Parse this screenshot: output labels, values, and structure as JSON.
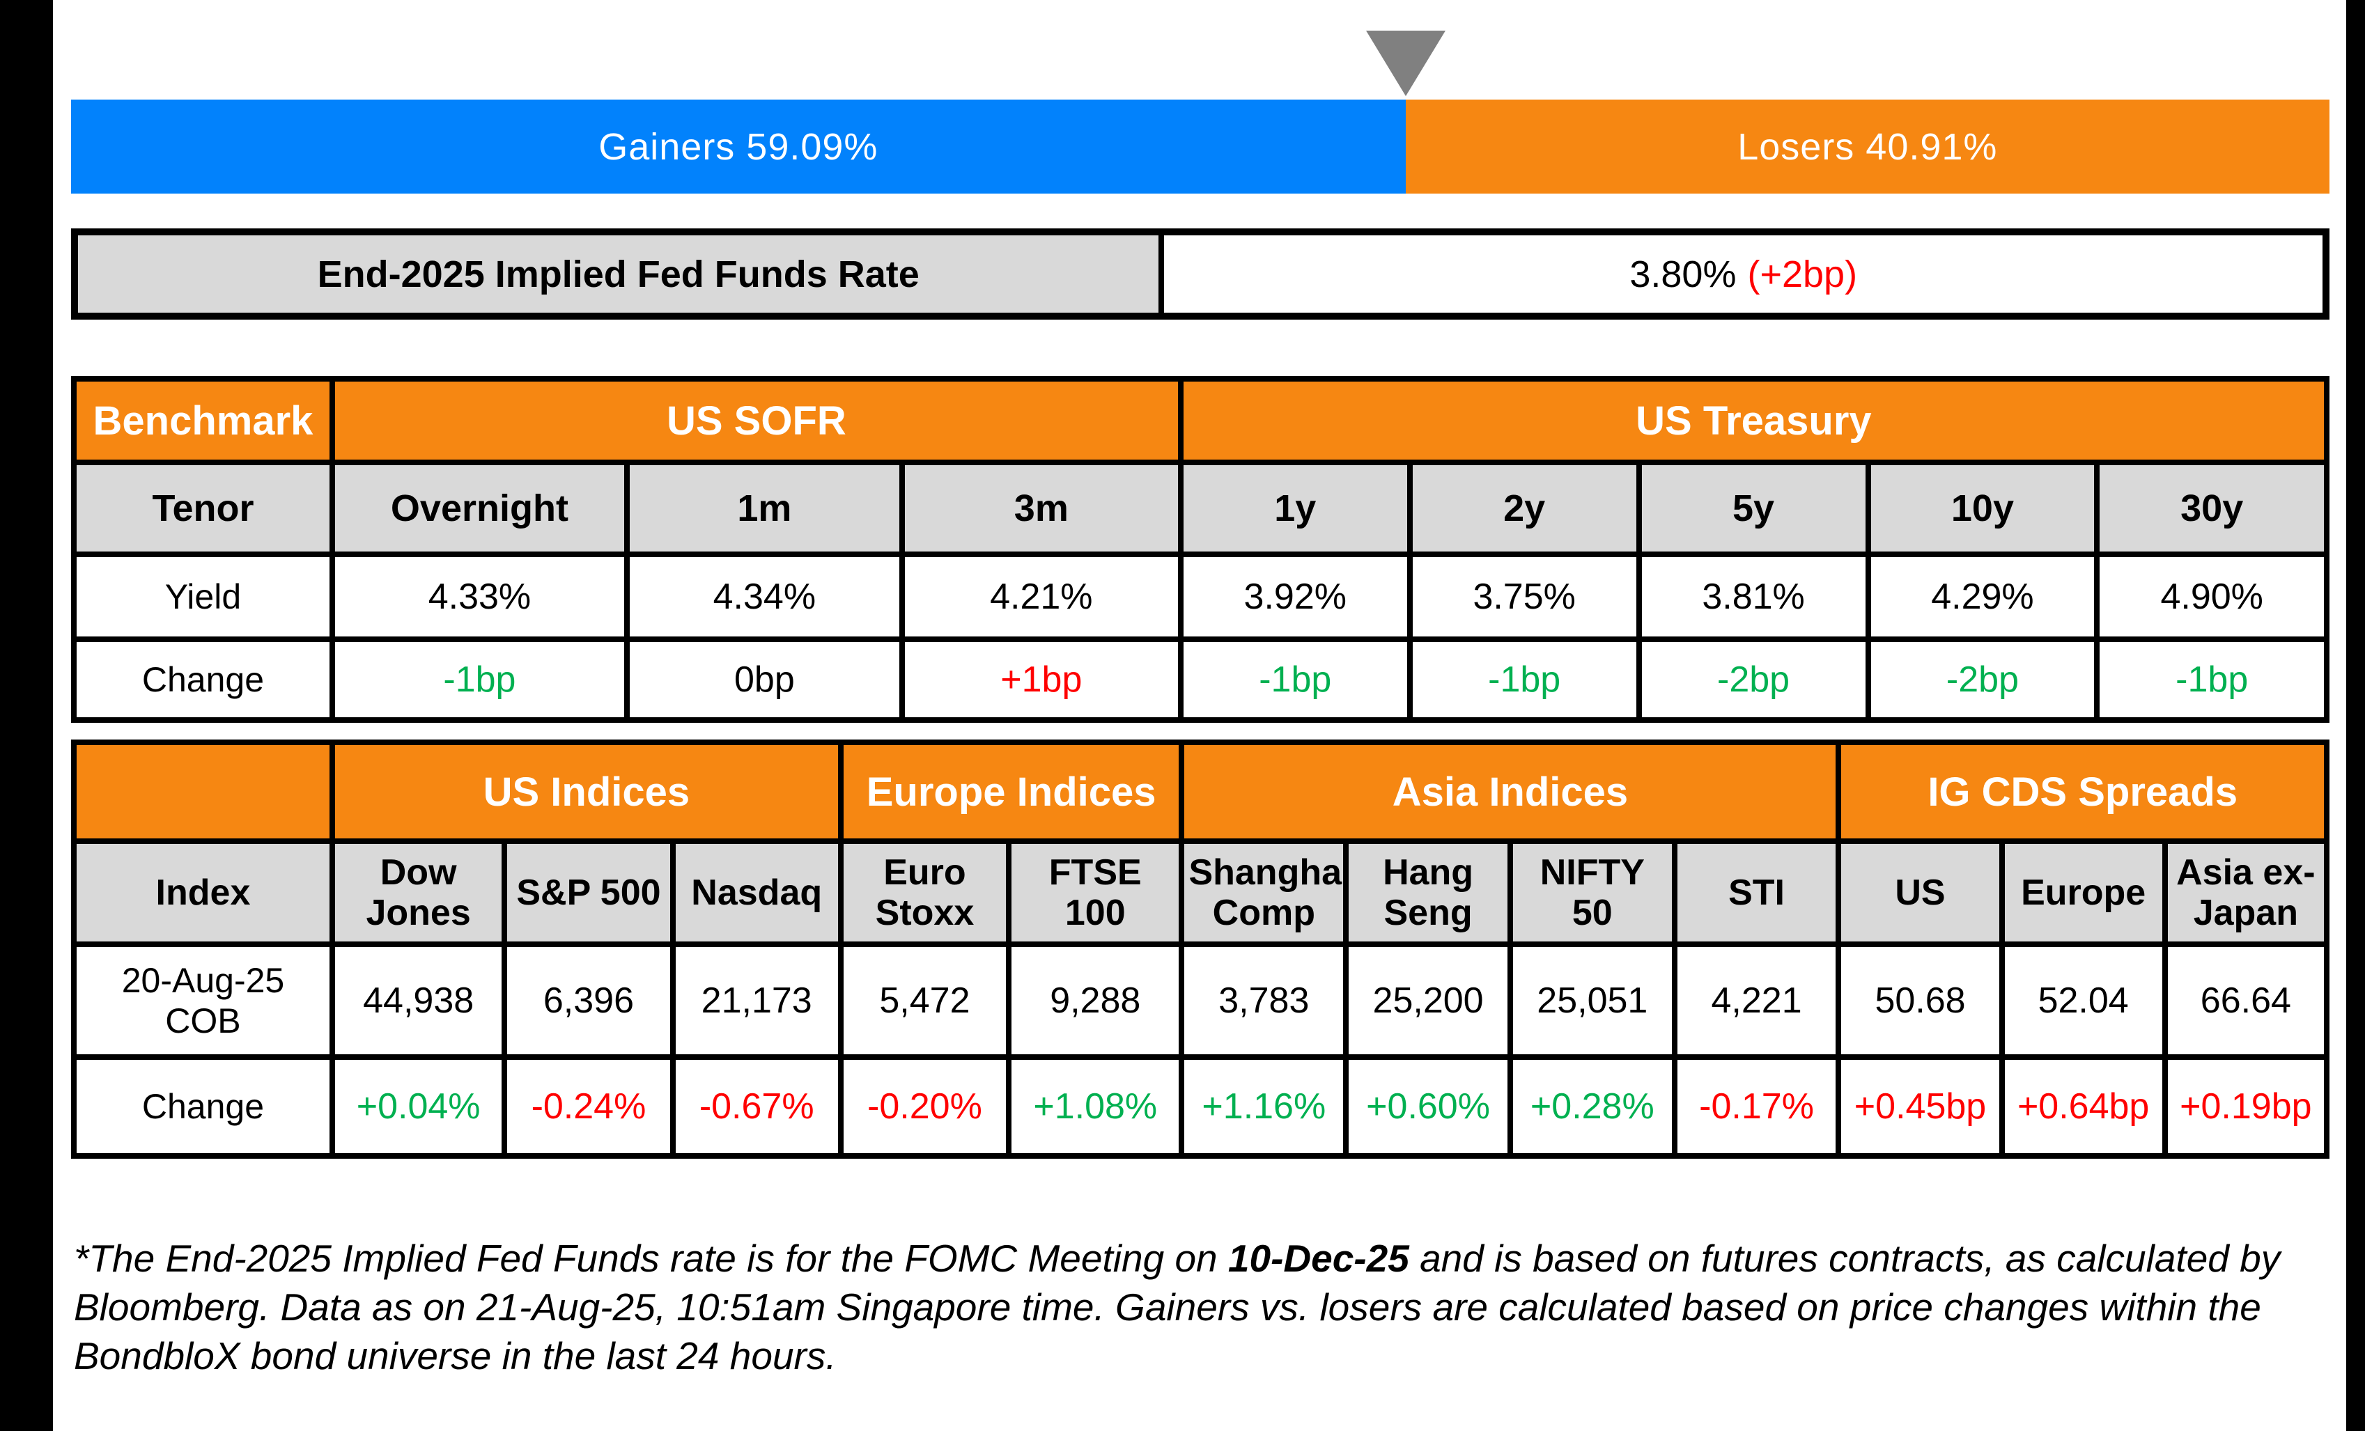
{
  "colors": {
    "gainers_blue": "#0282FC",
    "losers_orange": "#F68712",
    "header_orange": "#F68712",
    "header_gray": "#D9D9D9",
    "marker_gray": "#808080",
    "positive_green": "#00B050",
    "negative_red": "#FF0000",
    "border_black": "#000000"
  },
  "gainers_losers_bar": {
    "gainers_label": "Gainers 59.09%",
    "gainers_pct": 59.09,
    "losers_label": "Losers 40.91%",
    "losers_pct": 40.91
  },
  "fed_funds": {
    "label": "End-2025 Implied Fed Funds Rate",
    "value": "3.80%",
    "change": "(+2bp)"
  },
  "benchmark_table": {
    "corner_label": "Benchmark",
    "group_sofr": "US SOFR",
    "group_treasury": "US Treasury",
    "tenor_label": "Tenor",
    "yield_label": "Yield",
    "change_label": "Change",
    "columns": [
      {
        "tenor": "Overnight",
        "yield": "4.33%",
        "change": "-1bp",
        "change_cls": "pos"
      },
      {
        "tenor": "1m",
        "yield": "4.34%",
        "change": "0bp",
        "change_cls": "neutral"
      },
      {
        "tenor": "3m",
        "yield": "4.21%",
        "change": "+1bp",
        "change_cls": "neg"
      },
      {
        "tenor": "1y",
        "yield": "3.92%",
        "change": "-1bp",
        "change_cls": "pos"
      },
      {
        "tenor": "2y",
        "yield": "3.75%",
        "change": "-1bp",
        "change_cls": "pos"
      },
      {
        "tenor": "5y",
        "yield": "3.81%",
        "change": "-2bp",
        "change_cls": "pos"
      },
      {
        "tenor": "10y",
        "yield": "4.29%",
        "change": "-2bp",
        "change_cls": "pos"
      },
      {
        "tenor": "30y",
        "yield": "4.90%",
        "change": "-1bp",
        "change_cls": "pos"
      }
    ]
  },
  "indices_table": {
    "group_us": "US Indices",
    "group_europe": "Europe Indices",
    "group_asia": "Asia Indices",
    "group_cds": "IG CDS Spreads",
    "index_label": "Index",
    "date_label": "20-Aug-25 COB",
    "change_label": "Change",
    "columns": [
      {
        "name": "Dow Jones",
        "value": "44,938",
        "change": "+0.04%",
        "change_cls": "pos"
      },
      {
        "name": "S&P 500",
        "value": "6,396",
        "change": "-0.24%",
        "change_cls": "neg"
      },
      {
        "name": "Nasdaq",
        "value": "21,173",
        "change": "-0.67%",
        "change_cls": "neg"
      },
      {
        "name": "Euro Stoxx",
        "value": "5,472",
        "change": "-0.20%",
        "change_cls": "neg"
      },
      {
        "name": "FTSE 100",
        "value": "9,288",
        "change": "+1.08%",
        "change_cls": "pos"
      },
      {
        "name": "Shanghai Comp",
        "value": "3,783",
        "change": "+1.16%",
        "change_cls": "pos"
      },
      {
        "name": "Hang Seng",
        "value": "25,200",
        "change": "+0.60%",
        "change_cls": "pos"
      },
      {
        "name": "NIFTY 50",
        "value": "25,051",
        "change": "+0.28%",
        "change_cls": "pos"
      },
      {
        "name": "STI",
        "value": "4,221",
        "change": "-0.17%",
        "change_cls": "neg"
      },
      {
        "name": "US",
        "value": "50.68",
        "change": "+0.45bp",
        "change_cls": "neg"
      },
      {
        "name": "Europe",
        "value": "52.04",
        "change": "+0.64bp",
        "change_cls": "neg"
      },
      {
        "name": "Asia ex-Japan",
        "value": "66.64",
        "change": "+0.19bp",
        "change_cls": "neg"
      }
    ]
  },
  "footnote": {
    "line1_prefix": "*The End-2025 Implied Fed Funds rate is for the FOMC Meeting on ",
    "line1_bold": "10-Dec-25",
    "line1_suffix": " and is based on futures contracts, as calculated by",
    "line2": "Bloomberg. Data as on 21-Aug-25, 10:51am Singapore time. Gainers vs. losers are calculated based on price changes within the",
    "line3": "BondbloX bond universe in the last 24 hours."
  },
  "chart_data": [
    {
      "type": "bar",
      "title": "Gainers vs Losers (BondbloX bond universe, last 24 hours)",
      "orientation": "horizontal-stacked",
      "categories": [
        "Gainers",
        "Losers"
      ],
      "values": [
        59.09,
        40.91
      ],
      "unit": "%",
      "colors": [
        "#0282FC",
        "#F68712"
      ],
      "annotations": [
        "marker triangle at 59.09% boundary"
      ]
    },
    {
      "type": "table",
      "title": "End-2025 Implied Fed Funds Rate",
      "columns": [
        "Label",
        "Value"
      ],
      "rows": [
        [
          "End-2025 Implied Fed Funds Rate",
          "3.80% (+2bp)"
        ]
      ]
    },
    {
      "type": "table",
      "title": "Benchmark — US SOFR / US Treasury",
      "columns": [
        "Tenor",
        "Overnight",
        "1m",
        "3m",
        "1y",
        "2y",
        "5y",
        "10y",
        "30y"
      ],
      "rows": [
        [
          "Yield",
          "4.33%",
          "4.34%",
          "4.21%",
          "3.92%",
          "3.75%",
          "3.81%",
          "4.29%",
          "4.90%"
        ],
        [
          "Change",
          "-1bp",
          "0bp",
          "+1bp",
          "-1bp",
          "-1bp",
          "-2bp",
          "-2bp",
          "-1bp"
        ]
      ]
    },
    {
      "type": "table",
      "title": "US / Europe / Asia Indices and IG CDS Spreads",
      "columns": [
        "Index",
        "Dow Jones",
        "S&P 500",
        "Nasdaq",
        "Euro Stoxx",
        "FTSE 100",
        "Shanghai Comp",
        "Hang Seng",
        "NIFTY 50",
        "STI",
        "US",
        "Europe",
        "Asia ex-Japan"
      ],
      "rows": [
        [
          "20-Aug-25 COB",
          "44,938",
          "6,396",
          "21,173",
          "5,472",
          "9,288",
          "3,783",
          "25,200",
          "25,051",
          "4,221",
          "50.68",
          "52.04",
          "66.64"
        ],
        [
          "Change",
          "+0.04%",
          "-0.24%",
          "-0.67%",
          "-0.20%",
          "+1.08%",
          "+1.16%",
          "+0.60%",
          "+0.28%",
          "-0.17%",
          "+0.45bp",
          "+0.64bp",
          "+0.19bp"
        ]
      ]
    }
  ]
}
